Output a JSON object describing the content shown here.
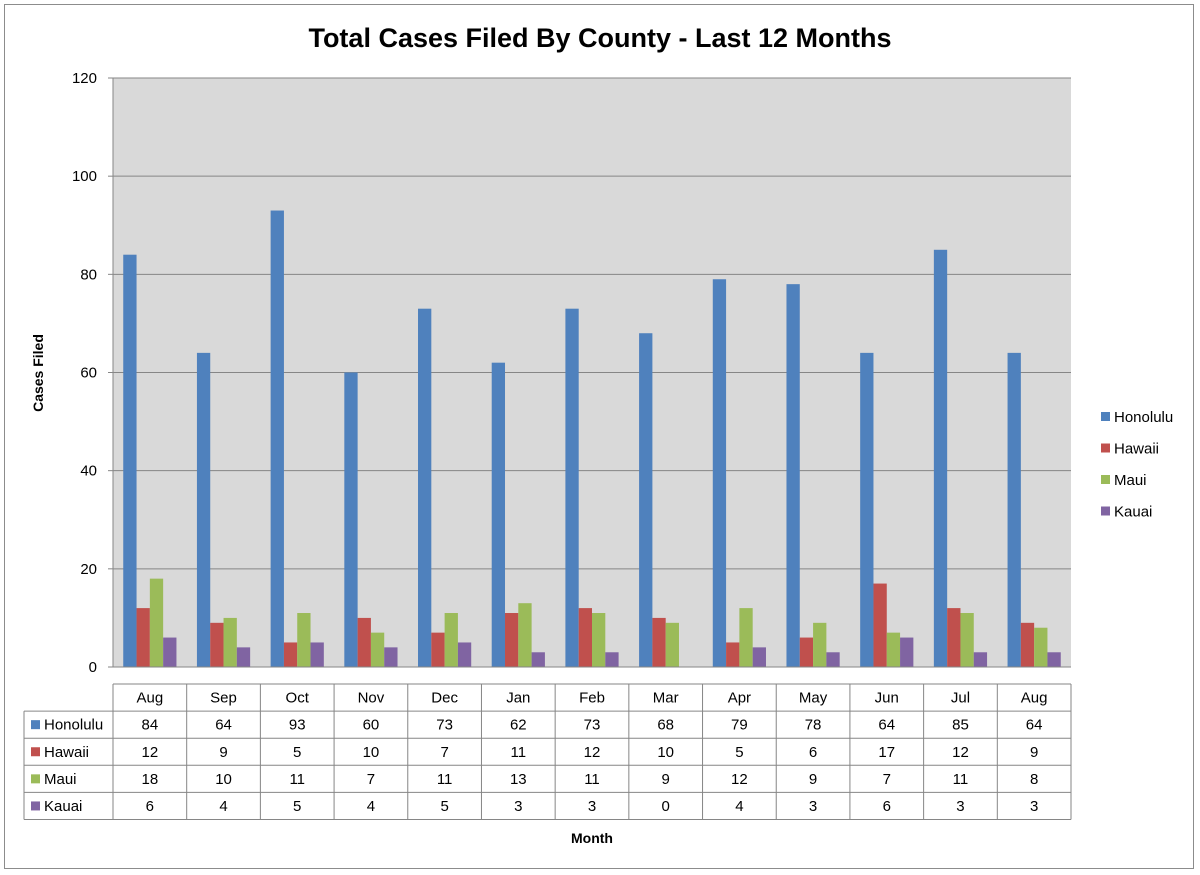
{
  "chart_data": {
    "type": "bar",
    "title": "Total Cases Filed By County - Last 12 Months",
    "xlabel": "Month",
    "ylabel": "Cases Filed",
    "ylim": [
      0,
      120
    ],
    "yticks": [
      0,
      20,
      40,
      60,
      80,
      100,
      120
    ],
    "grid": true,
    "legend_position": "right",
    "plot_background": "#d9d9d9",
    "categories": [
      "Aug",
      "Sep",
      "Oct",
      "Nov",
      "Dec",
      "Jan",
      "Feb",
      "Mar",
      "Apr",
      "May",
      "Jun",
      "Jul",
      "Aug"
    ],
    "series": [
      {
        "name": "Honolulu",
        "color": "#4f81bd",
        "values": [
          84,
          64,
          93,
          60,
          73,
          62,
          73,
          68,
          79,
          78,
          64,
          85,
          64
        ]
      },
      {
        "name": "Hawaii",
        "color": "#c0504d",
        "values": [
          12,
          9,
          5,
          10,
          7,
          11,
          12,
          10,
          5,
          6,
          17,
          12,
          9
        ]
      },
      {
        "name": "Maui",
        "color": "#9bbb59",
        "values": [
          18,
          10,
          11,
          7,
          11,
          13,
          11,
          9,
          12,
          9,
          7,
          11,
          8
        ]
      },
      {
        "name": "Kauai",
        "color": "#8064a2",
        "values": [
          6,
          4,
          5,
          4,
          5,
          3,
          3,
          0,
          4,
          3,
          6,
          3,
          3
        ]
      }
    ],
    "data_table": true
  }
}
